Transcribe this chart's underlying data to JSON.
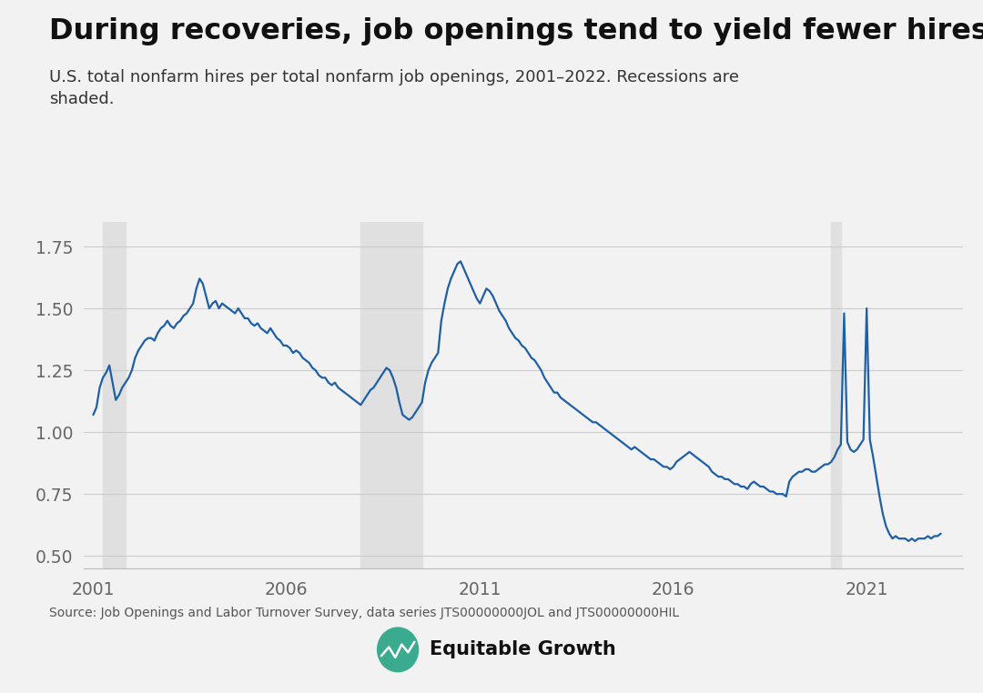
{
  "title": "During recoveries, job openings tend to yield fewer hires",
  "subtitle": "U.S. total nonfarm hires per total nonfarm job openings, 2001–2022. Recessions are\nshaded.",
  "source": "Source: Job Openings and Labor Turnover Survey, data series JTS00000000JOL and JTS00000000HIL",
  "line_color": "#1f5fa6",
  "recession_color": "#e0e0e0",
  "background_color": "#f2f2f2",
  "recessions": [
    {
      "start": 2001.25,
      "end": 2001.833
    },
    {
      "start": 2007.917,
      "end": 2009.5
    },
    {
      "start": 2020.083,
      "end": 2020.333
    }
  ],
  "ylim": [
    0.45,
    1.85
  ],
  "yticks": [
    0.5,
    0.75,
    1.0,
    1.25,
    1.5,
    1.75
  ],
  "xlim": [
    2000.75,
    2023.5
  ],
  "xticks": [
    2001,
    2006,
    2011,
    2016,
    2021
  ],
  "dates": [
    2001.0,
    2001.083,
    2001.167,
    2001.25,
    2001.333,
    2001.417,
    2001.5,
    2001.583,
    2001.667,
    2001.75,
    2001.833,
    2001.917,
    2002.0,
    2002.083,
    2002.167,
    2002.25,
    2002.333,
    2002.417,
    2002.5,
    2002.583,
    2002.667,
    2002.75,
    2002.833,
    2002.917,
    2003.0,
    2003.083,
    2003.167,
    2003.25,
    2003.333,
    2003.417,
    2003.5,
    2003.583,
    2003.667,
    2003.75,
    2003.833,
    2003.917,
    2004.0,
    2004.083,
    2004.167,
    2004.25,
    2004.333,
    2004.417,
    2004.5,
    2004.583,
    2004.667,
    2004.75,
    2004.833,
    2004.917,
    2005.0,
    2005.083,
    2005.167,
    2005.25,
    2005.333,
    2005.417,
    2005.5,
    2005.583,
    2005.667,
    2005.75,
    2005.833,
    2005.917,
    2006.0,
    2006.083,
    2006.167,
    2006.25,
    2006.333,
    2006.417,
    2006.5,
    2006.583,
    2006.667,
    2006.75,
    2006.833,
    2006.917,
    2007.0,
    2007.083,
    2007.167,
    2007.25,
    2007.333,
    2007.417,
    2007.5,
    2007.583,
    2007.667,
    2007.75,
    2007.833,
    2007.917,
    2008.0,
    2008.083,
    2008.167,
    2008.25,
    2008.333,
    2008.417,
    2008.5,
    2008.583,
    2008.667,
    2008.75,
    2008.833,
    2008.917,
    2009.0,
    2009.083,
    2009.167,
    2009.25,
    2009.333,
    2009.417,
    2009.5,
    2009.583,
    2009.667,
    2009.75,
    2009.833,
    2009.917,
    2010.0,
    2010.083,
    2010.167,
    2010.25,
    2010.333,
    2010.417,
    2010.5,
    2010.583,
    2010.667,
    2010.75,
    2010.833,
    2010.917,
    2011.0,
    2011.083,
    2011.167,
    2011.25,
    2011.333,
    2011.417,
    2011.5,
    2011.583,
    2011.667,
    2011.75,
    2011.833,
    2011.917,
    2012.0,
    2012.083,
    2012.167,
    2012.25,
    2012.333,
    2012.417,
    2012.5,
    2012.583,
    2012.667,
    2012.75,
    2012.833,
    2012.917,
    2013.0,
    2013.083,
    2013.167,
    2013.25,
    2013.333,
    2013.417,
    2013.5,
    2013.583,
    2013.667,
    2013.75,
    2013.833,
    2013.917,
    2014.0,
    2014.083,
    2014.167,
    2014.25,
    2014.333,
    2014.417,
    2014.5,
    2014.583,
    2014.667,
    2014.75,
    2014.833,
    2014.917,
    2015.0,
    2015.083,
    2015.167,
    2015.25,
    2015.333,
    2015.417,
    2015.5,
    2015.583,
    2015.667,
    2015.75,
    2015.833,
    2015.917,
    2016.0,
    2016.083,
    2016.167,
    2016.25,
    2016.333,
    2016.417,
    2016.5,
    2016.583,
    2016.667,
    2016.75,
    2016.833,
    2016.917,
    2017.0,
    2017.083,
    2017.167,
    2017.25,
    2017.333,
    2017.417,
    2017.5,
    2017.583,
    2017.667,
    2017.75,
    2017.833,
    2017.917,
    2018.0,
    2018.083,
    2018.167,
    2018.25,
    2018.333,
    2018.417,
    2018.5,
    2018.583,
    2018.667,
    2018.75,
    2018.833,
    2018.917,
    2019.0,
    2019.083,
    2019.167,
    2019.25,
    2019.333,
    2019.417,
    2019.5,
    2019.583,
    2019.667,
    2019.75,
    2019.833,
    2019.917,
    2020.0,
    2020.083,
    2020.167,
    2020.25,
    2020.333,
    2020.417,
    2020.5,
    2020.583,
    2020.667,
    2020.75,
    2020.833,
    2020.917,
    2021.0,
    2021.083,
    2021.167,
    2021.25,
    2021.333,
    2021.417,
    2021.5,
    2021.583,
    2021.667,
    2021.75,
    2021.833,
    2021.917,
    2022.0,
    2022.083,
    2022.167,
    2022.25,
    2022.333,
    2022.417,
    2022.5,
    2022.583,
    2022.667,
    2022.75,
    2022.833,
    2022.917
  ],
  "values": [
    1.07,
    1.1,
    1.18,
    1.22,
    1.24,
    1.27,
    1.2,
    1.13,
    1.15,
    1.18,
    1.2,
    1.22,
    1.25,
    1.3,
    1.33,
    1.35,
    1.37,
    1.38,
    1.38,
    1.37,
    1.4,
    1.42,
    1.43,
    1.45,
    1.43,
    1.42,
    1.44,
    1.45,
    1.47,
    1.48,
    1.5,
    1.52,
    1.58,
    1.62,
    1.6,
    1.55,
    1.5,
    1.52,
    1.53,
    1.5,
    1.52,
    1.51,
    1.5,
    1.49,
    1.48,
    1.5,
    1.48,
    1.46,
    1.46,
    1.44,
    1.43,
    1.44,
    1.42,
    1.41,
    1.4,
    1.42,
    1.4,
    1.38,
    1.37,
    1.35,
    1.35,
    1.34,
    1.32,
    1.33,
    1.32,
    1.3,
    1.29,
    1.28,
    1.26,
    1.25,
    1.23,
    1.22,
    1.22,
    1.2,
    1.19,
    1.2,
    1.18,
    1.17,
    1.16,
    1.15,
    1.14,
    1.13,
    1.12,
    1.11,
    1.13,
    1.15,
    1.17,
    1.18,
    1.2,
    1.22,
    1.24,
    1.26,
    1.25,
    1.22,
    1.18,
    1.12,
    1.07,
    1.06,
    1.05,
    1.06,
    1.08,
    1.1,
    1.12,
    1.2,
    1.25,
    1.28,
    1.3,
    1.32,
    1.45,
    1.52,
    1.58,
    1.62,
    1.65,
    1.68,
    1.69,
    1.66,
    1.63,
    1.6,
    1.57,
    1.54,
    1.52,
    1.55,
    1.58,
    1.57,
    1.55,
    1.52,
    1.49,
    1.47,
    1.45,
    1.42,
    1.4,
    1.38,
    1.37,
    1.35,
    1.34,
    1.32,
    1.3,
    1.29,
    1.27,
    1.25,
    1.22,
    1.2,
    1.18,
    1.16,
    1.16,
    1.14,
    1.13,
    1.12,
    1.11,
    1.1,
    1.09,
    1.08,
    1.07,
    1.06,
    1.05,
    1.04,
    1.04,
    1.03,
    1.02,
    1.01,
    1.0,
    0.99,
    0.98,
    0.97,
    0.96,
    0.95,
    0.94,
    0.93,
    0.94,
    0.93,
    0.92,
    0.91,
    0.9,
    0.89,
    0.89,
    0.88,
    0.87,
    0.86,
    0.86,
    0.85,
    0.86,
    0.88,
    0.89,
    0.9,
    0.91,
    0.92,
    0.91,
    0.9,
    0.89,
    0.88,
    0.87,
    0.86,
    0.84,
    0.83,
    0.82,
    0.82,
    0.81,
    0.81,
    0.8,
    0.79,
    0.79,
    0.78,
    0.78,
    0.77,
    0.79,
    0.8,
    0.79,
    0.78,
    0.78,
    0.77,
    0.76,
    0.76,
    0.75,
    0.75,
    0.75,
    0.74,
    0.8,
    0.82,
    0.83,
    0.84,
    0.84,
    0.85,
    0.85,
    0.84,
    0.84,
    0.85,
    0.86,
    0.87,
    0.87,
    0.88,
    0.9,
    0.93,
    0.95,
    1.48,
    0.96,
    0.93,
    0.92,
    0.93,
    0.95,
    0.97,
    1.5,
    0.97,
    0.9,
    0.82,
    0.74,
    0.67,
    0.62,
    0.59,
    0.57,
    0.58,
    0.57,
    0.57,
    0.57,
    0.56,
    0.57,
    0.56,
    0.57,
    0.57,
    0.57,
    0.58,
    0.57,
    0.58,
    0.58,
    0.59
  ]
}
